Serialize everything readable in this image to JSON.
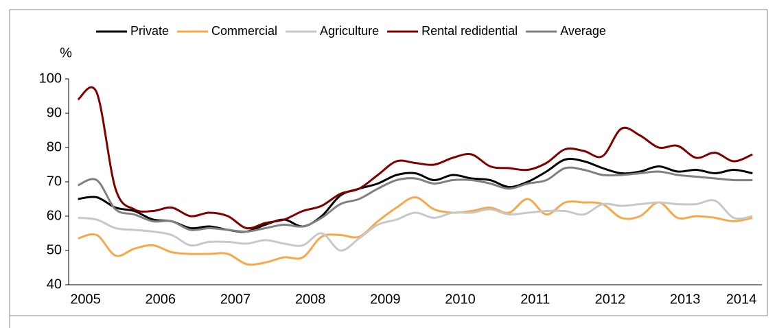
{
  "chart_data": {
    "type": "line",
    "y_label": "%",
    "categories": [
      "2005",
      null,
      null,
      null,
      "2006",
      null,
      null,
      null,
      "2007",
      null,
      null,
      null,
      "2008",
      null,
      null,
      null,
      "2009",
      null,
      null,
      null,
      "2010",
      null,
      null,
      null,
      "2011",
      null,
      null,
      null,
      "2012",
      null,
      null,
      null,
      "2013",
      null,
      null,
      "2014",
      null
    ],
    "ylim": [
      40,
      100
    ],
    "yticks": [
      40,
      50,
      60,
      70,
      80,
      90,
      100
    ],
    "legend": "top",
    "series": [
      {
        "name": "Private",
        "color": "#000000",
        "values": [
          65,
          65.5,
          62.5,
          61.5,
          59,
          58.5,
          56.5,
          57,
          56,
          55.5,
          57.5,
          59,
          57,
          60,
          66,
          68,
          69.5,
          72,
          72.5,
          70.5,
          72,
          71,
          70.5,
          68.5,
          70,
          73,
          76.5,
          76,
          74,
          72.5,
          73,
          74.5,
          73,
          73.5,
          72.5,
          73.5,
          72.5
        ]
      },
      {
        "name": "Commercial",
        "color": "#f5a94a",
        "values": [
          53.5,
          54.5,
          48.5,
          50.5,
          51.5,
          49.5,
          49,
          49,
          49,
          46,
          46.5,
          48,
          48,
          54,
          54.5,
          54,
          58.5,
          62.5,
          65.5,
          62,
          61,
          61.5,
          62.5,
          61,
          65,
          60.5,
          64,
          64,
          63.5,
          59.5,
          60,
          64,
          59.5,
          60,
          59.5,
          58.5,
          59.5
        ]
      },
      {
        "name": "Agriculture",
        "color": "#c8c8c8",
        "values": [
          59.5,
          59,
          56.5,
          56,
          55.5,
          54.5,
          51.5,
          52.5,
          52.5,
          52,
          53,
          52,
          51.5,
          55,
          50,
          53.5,
          57.5,
          59,
          61,
          59.5,
          61,
          61,
          62,
          60.5,
          61,
          61.5,
          61.5,
          60.5,
          63.5,
          63,
          63.5,
          64,
          63.5,
          63.5,
          64.5,
          59.5,
          60
        ]
      },
      {
        "name": "Rental redidential",
        "color": "#800000",
        "values": [
          94,
          96,
          68,
          62,
          61.5,
          62.5,
          60,
          61,
          60,
          56.5,
          58,
          59,
          61.5,
          63,
          66.5,
          68,
          72,
          76,
          75.5,
          75,
          77,
          78,
          74.5,
          74,
          73.5,
          75.5,
          79.5,
          79,
          77.5,
          85.5,
          83.5,
          80,
          80.5,
          77,
          78.5,
          76,
          78
        ]
      },
      {
        "name": "Average",
        "color": "#808080",
        "values": [
          69,
          70.5,
          62,
          60.5,
          58.5,
          58.5,
          56,
          56.5,
          56,
          55.5,
          56.5,
          57.5,
          57,
          59.5,
          63.5,
          65,
          68,
          70.5,
          71,
          69.5,
          70.5,
          70.5,
          69.5,
          68,
          69.5,
          70.5,
          74,
          73.5,
          72,
          72,
          72.5,
          73,
          72,
          71.5,
          71,
          70.5,
          70.5
        ]
      }
    ]
  }
}
